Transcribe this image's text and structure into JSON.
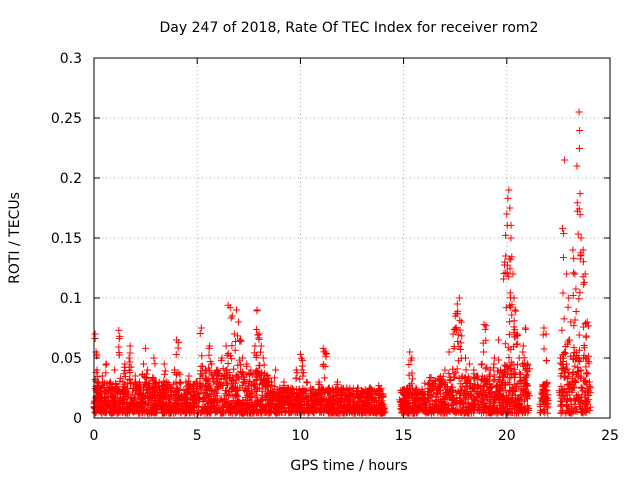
{
  "chart_data": {
    "type": "scatter",
    "title": "Day 247 of 2018, Rate Of TEC Index for receiver rom2",
    "xlabel": "GPS time / hours",
    "ylabel": "ROTI / TECUs",
    "xlim": [
      0,
      25
    ],
    "ylim": [
      0,
      0.3
    ],
    "xticks": [
      0,
      5,
      10,
      15,
      20,
      25
    ],
    "xtick_labels": [
      "0",
      "5",
      "10",
      "15",
      "20",
      "25"
    ],
    "yticks": [
      0,
      0.05,
      0.1,
      0.15,
      0.2,
      0.25,
      0.3
    ],
    "ytick_labels": [
      "0",
      "0.05",
      "0.1",
      "0.15",
      "0.2",
      "0.25",
      "0.3"
    ],
    "grid": true,
    "marker": "+",
    "color": "#ff0000",
    "series": [
      {
        "points": [
          [
            0.05,
            0.07
          ],
          [
            0.1,
            0.055
          ],
          [
            0.15,
            0.04
          ],
          [
            0.2,
            0.03
          ],
          [
            0.3,
            0.02
          ],
          [
            0.4,
            0.035
          ],
          [
            0.5,
            0.025
          ],
          [
            0.6,
            0.045
          ],
          [
            0.7,
            0.015
          ],
          [
            0.8,
            0.03
          ],
          [
            0.9,
            0.02
          ],
          [
            1.0,
            0.04
          ],
          [
            1.1,
            0.025
          ],
          [
            1.2,
            0.073
          ],
          [
            1.25,
            0.068
          ],
          [
            1.4,
            0.03
          ],
          [
            1.5,
            0.045
          ],
          [
            1.6,
            0.02
          ],
          [
            1.7,
            0.05
          ],
          [
            1.75,
            0.06
          ],
          [
            1.9,
            0.025
          ],
          [
            2.0,
            0.035
          ],
          [
            2.2,
            0.03
          ],
          [
            2.4,
            0.045
          ],
          [
            2.5,
            0.058
          ],
          [
            2.6,
            0.04
          ],
          [
            2.8,
            0.025
          ],
          [
            2.9,
            0.05
          ],
          [
            3.0,
            0.03
          ],
          [
            3.2,
            0.02
          ],
          [
            3.4,
            0.045
          ],
          [
            3.5,
            0.03
          ],
          [
            3.7,
            0.025
          ],
          [
            3.9,
            0.04
          ],
          [
            4.0,
            0.065
          ],
          [
            4.1,
            0.063
          ],
          [
            4.2,
            0.03
          ],
          [
            4.4,
            0.02
          ],
          [
            4.6,
            0.035
          ],
          [
            4.8,
            0.028
          ],
          [
            5.0,
            0.03
          ],
          [
            5.2,
            0.075
          ],
          [
            5.4,
            0.04
          ],
          [
            5.6,
            0.06
          ],
          [
            5.7,
            0.045
          ],
          [
            5.8,
            0.035
          ],
          [
            6.0,
            0.04
          ],
          [
            6.2,
            0.05
          ],
          [
            6.4,
            0.06
          ],
          [
            6.5,
            0.094
          ],
          [
            6.6,
            0.092
          ],
          [
            6.7,
            0.085
          ],
          [
            6.8,
            0.07
          ],
          [
            6.9,
            0.09
          ],
          [
            7.0,
            0.08
          ],
          [
            7.1,
            0.065
          ],
          [
            7.2,
            0.05
          ],
          [
            7.4,
            0.045
          ],
          [
            7.6,
            0.04
          ],
          [
            7.8,
            0.06
          ],
          [
            7.9,
            0.09
          ],
          [
            8.0,
            0.07
          ],
          [
            8.1,
            0.06
          ],
          [
            8.2,
            0.05
          ],
          [
            8.4,
            0.035
          ],
          [
            8.6,
            0.03
          ],
          [
            8.8,
            0.04
          ],
          [
            9.0,
            0.025
          ],
          [
            9.2,
            0.03
          ],
          [
            9.4,
            0.025
          ],
          [
            9.6,
            0.02
          ],
          [
            9.8,
            0.04
          ],
          [
            10.0,
            0.053
          ],
          [
            10.1,
            0.048
          ],
          [
            10.3,
            0.03
          ],
          [
            10.5,
            0.025
          ],
          [
            10.7,
            0.02
          ],
          [
            10.9,
            0.03
          ],
          [
            11.1,
            0.058
          ],
          [
            11.2,
            0.055
          ],
          [
            11.4,
            0.025
          ],
          [
            11.6,
            0.02
          ],
          [
            11.8,
            0.03
          ],
          [
            12.0,
            0.025
          ],
          [
            12.2,
            0.02
          ],
          [
            12.4,
            0.025
          ],
          [
            12.6,
            0.02
          ],
          [
            12.8,
            0.025
          ],
          [
            13.0,
            0.022
          ],
          [
            13.2,
            0.02
          ],
          [
            13.4,
            0.025
          ],
          [
            13.6,
            0.022
          ],
          [
            13.8,
            0.027
          ],
          [
            14.0,
            0.02
          ],
          [
            15.0,
            0.02
          ],
          [
            15.2,
            0.025
          ],
          [
            15.3,
            0.055
          ],
          [
            15.4,
            0.05
          ],
          [
            15.6,
            0.025
          ],
          [
            16.0,
            0.02
          ],
          [
            16.4,
            0.025
          ],
          [
            16.8,
            0.03
          ],
          [
            17.0,
            0.04
          ],
          [
            17.2,
            0.055
          ],
          [
            17.4,
            0.07
          ],
          [
            17.5,
            0.085
          ],
          [
            17.6,
            0.095
          ],
          [
            17.7,
            0.1
          ],
          [
            17.8,
            0.08
          ],
          [
            18.0,
            0.05
          ],
          [
            18.2,
            0.045
          ],
          [
            18.4,
            0.04
          ],
          [
            18.6,
            0.035
          ],
          [
            18.8,
            0.045
          ],
          [
            18.9,
            0.078
          ],
          [
            19.0,
            0.077
          ],
          [
            19.2,
            0.04
          ],
          [
            19.4,
            0.05
          ],
          [
            19.6,
            0.065
          ],
          [
            19.7,
            0.04
          ],
          [
            19.8,
            0.035
          ],
          [
            19.9,
            0.13
          ],
          [
            20.0,
            0.17
          ],
          [
            20.05,
            0.183
          ],
          [
            20.1,
            0.19
          ],
          [
            20.15,
            0.175
          ],
          [
            20.2,
            0.15
          ],
          [
            20.3,
            0.12
          ],
          [
            20.35,
            0.1
          ],
          [
            20.4,
            0.09
          ],
          [
            20.5,
            0.07
          ],
          [
            20.6,
            0.05
          ],
          [
            20.8,
            0.06
          ],
          [
            20.9,
            0.075
          ],
          [
            21.0,
            0.045
          ],
          [
            21.8,
            0.075
          ],
          [
            21.9,
            0.07
          ],
          [
            22.6,
            0.05
          ],
          [
            22.7,
            0.158
          ],
          [
            22.8,
            0.215
          ],
          [
            22.9,
            0.12
          ],
          [
            23.0,
            0.1
          ],
          [
            23.1,
            0.08
          ],
          [
            23.2,
            0.14
          ],
          [
            23.3,
            0.12
          ],
          [
            23.4,
            0.21
          ],
          [
            23.5,
            0.255
          ],
          [
            23.55,
            0.187
          ],
          [
            23.6,
            0.15
          ],
          [
            23.7,
            0.14
          ],
          [
            23.8,
            0.12
          ],
          [
            23.9,
            0.08
          ],
          [
            24.0,
            0.03
          ]
        ],
        "dense_bands": [
          {
            "x": [
              0.0,
              5.0
            ],
            "ymin": 0.004,
            "ymax": 0.03
          },
          {
            "x": [
              5.0,
              8.5
            ],
            "ymin": 0.004,
            "ymax": 0.04
          },
          {
            "x": [
              8.5,
              14.1
            ],
            "ymin": 0.004,
            "ymax": 0.025
          },
          {
            "x": [
              14.8,
              16.0
            ],
            "ymin": 0.004,
            "ymax": 0.025
          },
          {
            "x": [
              16.0,
              19.5
            ],
            "ymin": 0.004,
            "ymax": 0.035
          },
          {
            "x": [
              19.5,
              21.1
            ],
            "ymin": 0.004,
            "ymax": 0.045
          },
          {
            "x": [
              21.6,
              22.0
            ],
            "ymin": 0.004,
            "ymax": 0.03
          },
          {
            "x": [
              22.6,
              24.0
            ],
            "ymin": 0.004,
            "ymax": 0.055
          }
        ]
      }
    ]
  }
}
